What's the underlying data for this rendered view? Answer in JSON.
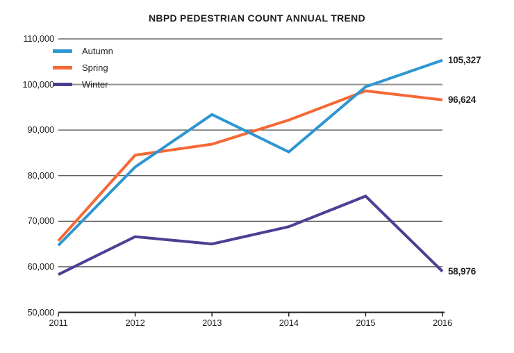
{
  "title": "NBPD PEDESTRIAN COUNT ANNUAL TREND",
  "colors": {
    "autumn": "#2e96d0",
    "spring": "#f46935",
    "winter": "#4e3e93",
    "grid_light": "#8e8e8e",
    "grid_dark": "#4a4a4a",
    "axis": "#231f20",
    "text": "#231f20"
  },
  "chart_data": {
    "type": "line",
    "title": "NBPD PEDESTRIAN COUNT ANNUAL TREND",
    "categories": [
      "2011",
      "2012",
      "2013",
      "2014",
      "2015",
      "2016"
    ],
    "series": [
      {
        "name": "Autumn",
        "color": "#2e96d0",
        "values": [
          64700,
          81900,
          93400,
          85200,
          99500,
          105327
        ],
        "end_label": "105,327"
      },
      {
        "name": "Spring",
        "color": "#f46935",
        "values": [
          65700,
          84500,
          86900,
          92200,
          98600,
          96624
        ],
        "end_label": "96,624"
      },
      {
        "name": "Winter",
        "color": "#4e3e93",
        "values": [
          58300,
          66600,
          65000,
          68800,
          75500,
          58976
        ],
        "end_label": "58,976"
      }
    ],
    "ylim": [
      50000,
      110000
    ],
    "y_tick_step": 10000,
    "y_ticks": [
      110000,
      100000,
      90000,
      80000,
      70000,
      60000,
      50000
    ],
    "y_tick_labels": [
      "110,000",
      "100,000",
      "90,000",
      "80,000",
      "70,000",
      "60,000",
      "50,000"
    ],
    "grid": "horizontal",
    "legend_position": "top-left",
    "legend": [
      "Autumn",
      "Spring",
      "Winter"
    ]
  }
}
